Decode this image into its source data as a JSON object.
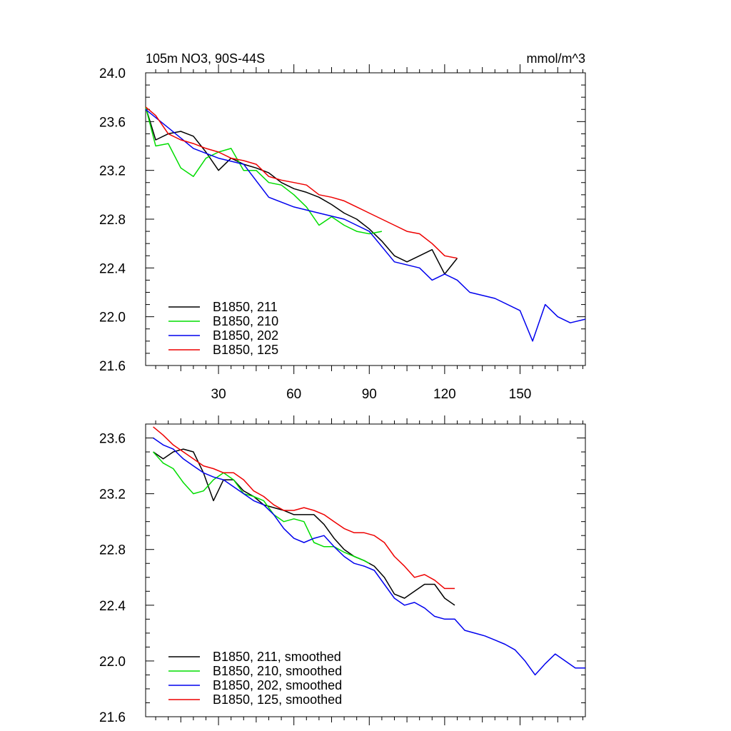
{
  "chart_data": [
    {
      "type": "line",
      "title": "105m NO3, 90S-44S",
      "units": "mmol/m^3",
      "xlim": [
        1,
        176
      ],
      "ylim": [
        21.6,
        24.0
      ],
      "xticks": [
        30,
        60,
        90,
        120,
        150
      ],
      "yticks": [
        "21.6",
        "22.0",
        "22.4",
        "22.8",
        "23.2",
        "23.6",
        "24.0"
      ],
      "legend_position": "bottom-left",
      "series": [
        {
          "name": "B1850, 211",
          "color": "#000000",
          "x": [
            1,
            5,
            10,
            15,
            20,
            25,
            30,
            35,
            40,
            45,
            50,
            55,
            60,
            65,
            70,
            75,
            80,
            85,
            90,
            95,
            100,
            105,
            110,
            115,
            120,
            125
          ],
          "y": [
            23.72,
            23.45,
            23.5,
            23.52,
            23.48,
            23.35,
            23.2,
            23.3,
            23.25,
            23.22,
            23.18,
            23.1,
            23.05,
            23.02,
            22.98,
            22.92,
            22.85,
            22.8,
            22.72,
            22.62,
            22.5,
            22.45,
            22.5,
            22.55,
            22.35,
            22.48
          ]
        },
        {
          "name": "B1850, 210",
          "color": "#00dd00",
          "x": [
            1,
            5,
            10,
            15,
            20,
            25,
            30,
            35,
            40,
            45,
            50,
            55,
            60,
            65,
            70,
            75,
            80,
            85,
            90,
            95
          ],
          "y": [
            23.72,
            23.4,
            23.42,
            23.22,
            23.15,
            23.3,
            23.35,
            23.38,
            23.2,
            23.2,
            23.1,
            23.08,
            23.0,
            22.9,
            22.75,
            22.82,
            22.75,
            22.7,
            22.68,
            22.7
          ]
        },
        {
          "name": "B1850, 202",
          "color": "#0000ee",
          "x": [
            1,
            10,
            20,
            30,
            40,
            50,
            60,
            70,
            80,
            90,
            100,
            110,
            115,
            120,
            125,
            130,
            140,
            150,
            155,
            160,
            165,
            170,
            176
          ],
          "y": [
            23.7,
            23.55,
            23.38,
            23.3,
            23.25,
            22.98,
            22.9,
            22.85,
            22.8,
            22.7,
            22.45,
            22.4,
            22.3,
            22.35,
            22.3,
            22.2,
            22.15,
            22.05,
            21.8,
            22.1,
            22.0,
            21.95,
            21.98
          ]
        },
        {
          "name": "B1850, 125",
          "color": "#ee0000",
          "x": [
            1,
            5,
            10,
            15,
            20,
            25,
            30,
            35,
            40,
            45,
            50,
            55,
            60,
            65,
            70,
            75,
            80,
            85,
            90,
            95,
            100,
            105,
            110,
            115,
            120,
            125
          ],
          "y": [
            23.72,
            23.65,
            23.5,
            23.45,
            23.42,
            23.38,
            23.35,
            23.3,
            23.28,
            23.25,
            23.15,
            23.12,
            23.1,
            23.08,
            23.0,
            22.98,
            22.95,
            22.9,
            22.85,
            22.8,
            22.75,
            22.7,
            22.68,
            22.6,
            22.5,
            22.48
          ]
        }
      ]
    },
    {
      "type": "line",
      "xlim": [
        1,
        176
      ],
      "ylim": [
        21.6,
        23.7
      ],
      "yticks": [
        "21.6",
        "22.0",
        "22.4",
        "22.8",
        "23.2",
        "23.6"
      ],
      "legend_position": "bottom-left",
      "series": [
        {
          "name": "B1850, 211, smoothed",
          "color": "#000000",
          "x": [
            4,
            8,
            12,
            16,
            20,
            24,
            28,
            32,
            36,
            40,
            44,
            48,
            52,
            56,
            60,
            64,
            68,
            72,
            76,
            80,
            84,
            88,
            92,
            96,
            100,
            104,
            108,
            112,
            116,
            120,
            124
          ],
          "y": [
            23.5,
            23.45,
            23.5,
            23.52,
            23.5,
            23.35,
            23.15,
            23.3,
            23.3,
            23.22,
            23.18,
            23.12,
            23.1,
            23.08,
            23.05,
            23.05,
            23.05,
            22.98,
            22.88,
            22.8,
            22.75,
            22.72,
            22.68,
            22.6,
            22.48,
            22.45,
            22.5,
            22.55,
            22.55,
            22.45,
            22.4
          ]
        },
        {
          "name": "B1850, 210, smoothed",
          "color": "#00dd00",
          "x": [
            4,
            8,
            12,
            16,
            20,
            24,
            28,
            32,
            36,
            40,
            44,
            48,
            52,
            56,
            60,
            64,
            68,
            72,
            76,
            80,
            84,
            88,
            90
          ],
          "y": [
            23.5,
            23.42,
            23.38,
            23.28,
            23.2,
            23.22,
            23.3,
            23.35,
            23.3,
            23.2,
            23.18,
            23.15,
            23.05,
            23.0,
            23.02,
            23.0,
            22.85,
            22.82,
            22.82,
            22.78,
            22.75,
            22.72,
            22.7
          ]
        },
        {
          "name": "B1850, 202, smoothed",
          "color": "#0000ee",
          "x": [
            4,
            8,
            12,
            16,
            20,
            24,
            28,
            32,
            36,
            40,
            44,
            48,
            52,
            56,
            60,
            64,
            68,
            72,
            76,
            80,
            84,
            88,
            92,
            96,
            100,
            104,
            108,
            112,
            116,
            120,
            124,
            128,
            132,
            136,
            140,
            144,
            148,
            152,
            156,
            160,
            164,
            168,
            172,
            176
          ],
          "y": [
            23.6,
            23.55,
            23.52,
            23.45,
            23.4,
            23.35,
            23.32,
            23.3,
            23.25,
            23.2,
            23.15,
            23.12,
            23.05,
            22.95,
            22.88,
            22.85,
            22.88,
            22.9,
            22.82,
            22.75,
            22.7,
            22.68,
            22.65,
            22.55,
            22.45,
            22.4,
            22.42,
            22.38,
            22.32,
            22.3,
            22.3,
            22.22,
            22.2,
            22.18,
            22.15,
            22.12,
            22.08,
            22.0,
            21.9,
            21.98,
            22.05,
            22.0,
            21.95,
            21.95
          ]
        },
        {
          "name": "B1850, 125, smoothed",
          "color": "#ee0000",
          "x": [
            4,
            8,
            12,
            16,
            20,
            24,
            28,
            32,
            36,
            40,
            44,
            48,
            52,
            56,
            60,
            64,
            68,
            72,
            76,
            80,
            84,
            88,
            92,
            96,
            100,
            104,
            108,
            112,
            116,
            120,
            124
          ],
          "y": [
            23.68,
            23.62,
            23.55,
            23.5,
            23.45,
            23.4,
            23.38,
            23.35,
            23.35,
            23.3,
            23.22,
            23.18,
            23.12,
            23.08,
            23.08,
            23.1,
            23.08,
            23.05,
            23.0,
            22.95,
            22.92,
            22.92,
            22.9,
            22.85,
            22.75,
            22.68,
            22.6,
            22.62,
            22.58,
            22.52,
            22.52
          ]
        }
      ]
    }
  ]
}
